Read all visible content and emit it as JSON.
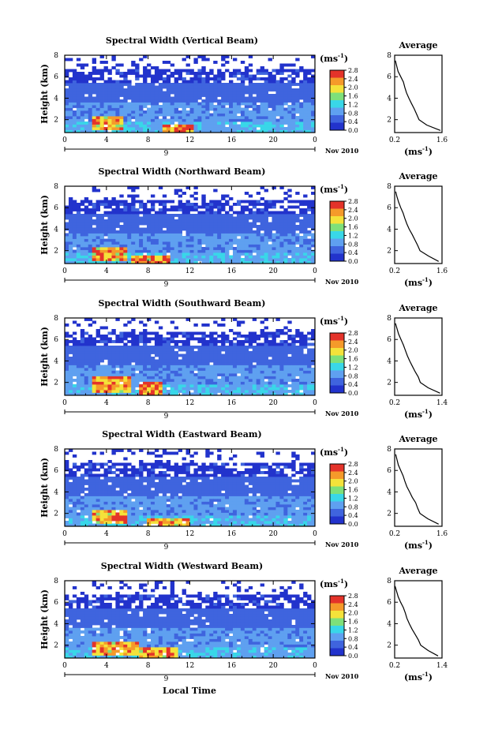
{
  "figure": {
    "xlabel": "Local Time",
    "date_label": "Nov 2010",
    "day_label": "9",
    "unit_label": "(ms",
    "unit_exp": "-1",
    "avg_title": "Average",
    "ylabel": "Height (km)",
    "colorbar_ticks": [
      "2.8",
      "2.4",
      "2.0",
      "1.6",
      "1.2",
      "0.8",
      "0.4",
      "0.0"
    ],
    "colors": {
      "white": "#ffffff",
      "deep_blue": "#2233cc",
      "mid_blue": "#3f64de",
      "light_blue": "#5fa0f0",
      "cyan": "#39d7e8",
      "green": "#7ee07a",
      "yellow": "#f4e23a",
      "orange": "#f59a2a",
      "red": "#e4332a"
    }
  },
  "chart_data": [
    {
      "type": "heatmap",
      "title": "Spectral Width (Vertical Beam)",
      "x_ticks": [
        "0",
        "4",
        "8",
        "12",
        "16",
        "20",
        "0"
      ],
      "y_ticks": [
        "8",
        "6",
        "4",
        "2"
      ],
      "xlim": [
        0,
        24
      ],
      "ylim": [
        0.8,
        8
      ],
      "colorbar_range": [
        0.0,
        2.8
      ],
      "height_bands_km": [
        {
          "from": 0.8,
          "to": 1.8,
          "width_ms": 1.0
        },
        {
          "from": 1.8,
          "to": 3.6,
          "width_ms": 0.8
        },
        {
          "from": 3.6,
          "to": 5.5,
          "width_ms": 0.5
        },
        {
          "from": 5.5,
          "to": 6.8,
          "width_ms": 0.3
        },
        {
          "from": 6.8,
          "to": 8.0,
          "width_ms": 0.2
        }
      ],
      "hot_spots": [
        {
          "t_from": 2.5,
          "t_to": 5.5,
          "h_from": 1.0,
          "h_to": 2.4,
          "width_ms": 2.2
        },
        {
          "t_from": 9.5,
          "t_to": 12.5,
          "h_from": 0.9,
          "h_to": 1.6,
          "width_ms": 2.5
        }
      ],
      "average": {
        "title": "Average",
        "x_ticks": [
          "0.2",
          "1.6"
        ],
        "y_ticks": [
          "8",
          "6",
          "4",
          "2"
        ],
        "xlabel": "(ms",
        "xlim": [
          0.2,
          1.6
        ],
        "ylim": [
          0.8,
          8
        ],
        "height_km": [
          1.0,
          1.5,
          2.0,
          2.5,
          3.0,
          3.5,
          4.0,
          4.5,
          5.0,
          5.5,
          6.0,
          6.5,
          7.0,
          7.5
        ],
        "width_ms": [
          1.55,
          1.15,
          0.92,
          0.85,
          0.78,
          0.7,
          0.62,
          0.55,
          0.5,
          0.46,
          0.38,
          0.3,
          0.26,
          0.22
        ]
      }
    },
    {
      "type": "heatmap",
      "title": "Spectral Width (Northward Beam)",
      "x_ticks": [
        "0",
        "4",
        "8",
        "12",
        "16",
        "20",
        "0"
      ],
      "y_ticks": [
        "8",
        "6",
        "4",
        "2"
      ],
      "xlim": [
        0,
        24
      ],
      "ylim": [
        0.8,
        8
      ],
      "colorbar_range": [
        0.0,
        2.8
      ],
      "height_bands_km": [
        {
          "from": 0.8,
          "to": 1.8,
          "width_ms": 1.0
        },
        {
          "from": 1.8,
          "to": 3.6,
          "width_ms": 0.8
        },
        {
          "from": 3.6,
          "to": 5.5,
          "width_ms": 0.5
        },
        {
          "from": 5.5,
          "to": 6.8,
          "width_ms": 0.3
        },
        {
          "from": 6.8,
          "to": 8.0,
          "width_ms": 0.2
        }
      ],
      "hot_spots": [
        {
          "t_from": 2.5,
          "t_to": 6.0,
          "h_from": 1.0,
          "h_to": 2.3,
          "width_ms": 2.2
        },
        {
          "t_from": 6.5,
          "t_to": 10.0,
          "h_from": 0.9,
          "h_to": 1.7,
          "width_ms": 2.3
        }
      ],
      "average": {
        "title": "Average",
        "x_ticks": [
          "0.2",
          "1.6"
        ],
        "y_ticks": [
          "8",
          "6",
          "4",
          "2"
        ],
        "xlabel": "(ms",
        "xlim": [
          0.2,
          1.6
        ],
        "ylim": [
          0.8,
          8
        ],
        "height_km": [
          1.0,
          1.5,
          2.0,
          2.5,
          3.0,
          3.5,
          4.0,
          4.5,
          5.0,
          5.5,
          6.0,
          6.5,
          7.0,
          7.5
        ],
        "width_ms": [
          1.5,
          1.2,
          0.95,
          0.88,
          0.8,
          0.72,
          0.63,
          0.56,
          0.5,
          0.45,
          0.38,
          0.32,
          0.27,
          0.23
        ]
      }
    },
    {
      "type": "heatmap",
      "title": "Spectral Width (Southward Beam)",
      "x_ticks": [
        "0",
        "4",
        "8",
        "12",
        "16",
        "20",
        "0"
      ],
      "y_ticks": [
        "8",
        "6",
        "4",
        "2"
      ],
      "xlim": [
        0,
        24
      ],
      "ylim": [
        0.8,
        8
      ],
      "colorbar_range": [
        0.0,
        2.8
      ],
      "height_bands_km": [
        {
          "from": 0.8,
          "to": 1.8,
          "width_ms": 1.0
        },
        {
          "from": 1.8,
          "to": 3.6,
          "width_ms": 0.8
        },
        {
          "from": 3.6,
          "to": 5.5,
          "width_ms": 0.5
        },
        {
          "from": 5.5,
          "to": 6.8,
          "width_ms": 0.3
        },
        {
          "from": 6.8,
          "to": 8.0,
          "width_ms": 0.2
        }
      ],
      "hot_spots": [
        {
          "t_from": 2.5,
          "t_to": 6.5,
          "h_from": 1.0,
          "h_to": 2.5,
          "width_ms": 2.2
        },
        {
          "t_from": 7.0,
          "t_to": 9.5,
          "h_from": 0.9,
          "h_to": 2.0,
          "width_ms": 2.4
        }
      ],
      "average": {
        "title": "Average",
        "x_ticks": [
          "0.2",
          "1.4"
        ],
        "y_ticks": [
          "8",
          "6",
          "4",
          "2"
        ],
        "xlabel": "(ms",
        "xlim": [
          0.2,
          1.4
        ],
        "ylim": [
          0.8,
          8
        ],
        "height_km": [
          1.0,
          1.5,
          2.0,
          2.5,
          3.0,
          3.5,
          4.0,
          4.5,
          5.0,
          5.5,
          6.0,
          6.5,
          7.0,
          7.5
        ],
        "width_ms": [
          1.35,
          1.05,
          0.85,
          0.8,
          0.72,
          0.65,
          0.58,
          0.52,
          0.47,
          0.42,
          0.36,
          0.3,
          0.26,
          0.22
        ]
      }
    },
    {
      "type": "heatmap",
      "title": "Spectral Width (Eastward Beam)",
      "x_ticks": [
        "0",
        "4",
        "8",
        "12",
        "16",
        "20",
        "0"
      ],
      "y_ticks": [
        "8",
        "6",
        "4",
        "2"
      ],
      "xlim": [
        0,
        24
      ],
      "ylim": [
        0.8,
        8
      ],
      "colorbar_range": [
        0.0,
        2.8
      ],
      "height_bands_km": [
        {
          "from": 0.8,
          "to": 1.8,
          "width_ms": 1.0
        },
        {
          "from": 1.8,
          "to": 3.6,
          "width_ms": 0.8
        },
        {
          "from": 3.6,
          "to": 5.5,
          "width_ms": 0.5
        },
        {
          "from": 5.5,
          "to": 6.8,
          "width_ms": 0.3
        },
        {
          "from": 6.8,
          "to": 8.0,
          "width_ms": 0.2
        }
      ],
      "hot_spots": [
        {
          "t_from": 2.5,
          "t_to": 6.0,
          "h_from": 1.0,
          "h_to": 2.4,
          "width_ms": 2.2
        },
        {
          "t_from": 8.0,
          "t_to": 12.0,
          "h_from": 0.9,
          "h_to": 1.7,
          "width_ms": 2.3
        }
      ],
      "average": {
        "title": "Average",
        "x_ticks": [
          "0.2",
          "1.6"
        ],
        "y_ticks": [
          "8",
          "6",
          "4",
          "2"
        ],
        "xlabel": "(ms",
        "xlim": [
          0.2,
          1.6
        ],
        "ylim": [
          0.8,
          8
        ],
        "height_km": [
          1.0,
          1.5,
          2.0,
          2.5,
          3.0,
          3.5,
          4.0,
          4.5,
          5.0,
          5.5,
          6.0,
          6.5,
          7.0,
          7.5
        ],
        "width_ms": [
          1.5,
          1.18,
          0.95,
          0.88,
          0.82,
          0.72,
          0.64,
          0.56,
          0.5,
          0.45,
          0.38,
          0.31,
          0.27,
          0.23
        ]
      }
    },
    {
      "type": "heatmap",
      "title": "Spectral Width (Westward Beam)",
      "x_ticks": [
        "0",
        "4",
        "8",
        "12",
        "16",
        "20",
        "0"
      ],
      "y_ticks": [
        "8",
        "6",
        "4",
        "2"
      ],
      "xlim": [
        0,
        24
      ],
      "ylim": [
        0.8,
        8
      ],
      "colorbar_range": [
        0.0,
        2.8
      ],
      "height_bands_km": [
        {
          "from": 0.8,
          "to": 1.8,
          "width_ms": 1.0
        },
        {
          "from": 1.8,
          "to": 3.6,
          "width_ms": 0.8
        },
        {
          "from": 3.6,
          "to": 5.5,
          "width_ms": 0.5
        },
        {
          "from": 5.5,
          "to": 6.8,
          "width_ms": 0.3
        },
        {
          "from": 6.8,
          "to": 8.0,
          "width_ms": 0.2
        }
      ],
      "hot_spots": [
        {
          "t_from": 2.5,
          "t_to": 7.0,
          "h_from": 1.0,
          "h_to": 2.4,
          "width_ms": 2.2
        },
        {
          "t_from": 7.0,
          "t_to": 11.0,
          "h_from": 0.9,
          "h_to": 1.8,
          "width_ms": 2.3
        }
      ],
      "average": {
        "title": "Average",
        "x_ticks": [
          "0.2",
          "1.4"
        ],
        "y_ticks": [
          "8",
          "6",
          "4",
          "2"
        ],
        "xlabel": "(ms",
        "xlim": [
          0.2,
          1.4
        ],
        "ylim": [
          0.8,
          8
        ],
        "height_km": [
          1.0,
          1.5,
          2.0,
          2.5,
          3.0,
          3.5,
          4.0,
          4.5,
          5.0,
          5.5,
          6.0,
          6.5,
          7.0,
          7.5
        ],
        "width_ms": [
          1.3,
          1.05,
          0.86,
          0.8,
          0.72,
          0.64,
          0.57,
          0.51,
          0.47,
          0.42,
          0.35,
          0.29,
          0.25,
          0.21
        ]
      }
    }
  ]
}
